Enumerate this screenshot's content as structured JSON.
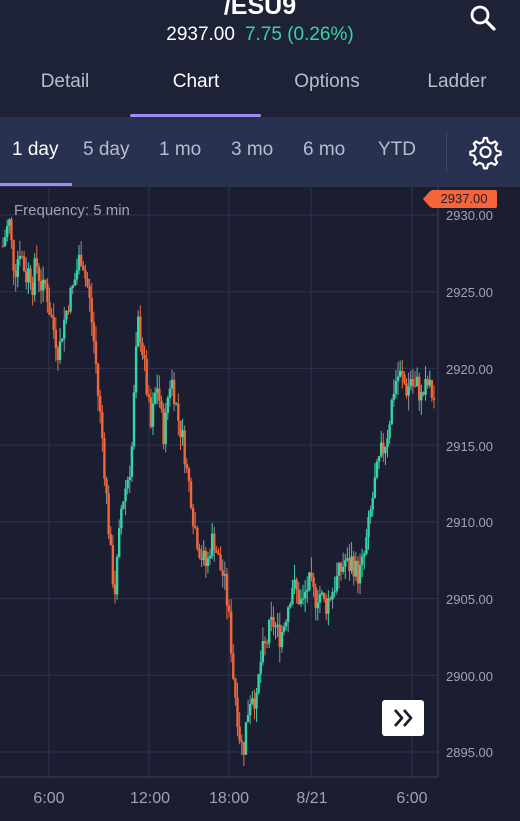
{
  "header": {
    "symbol": "/ESU9",
    "price": "2937.00",
    "change": "7.75 (0.26%)",
    "search_icon": "search-icon"
  },
  "tabs": [
    {
      "label": "Detail",
      "active": false
    },
    {
      "label": "Chart",
      "active": true
    },
    {
      "label": "Options",
      "active": false
    },
    {
      "label": "Ladder",
      "active": false
    }
  ],
  "ranges": [
    {
      "label": "1 day",
      "active": true
    },
    {
      "label": "5 day",
      "active": false
    },
    {
      "label": "1 mo",
      "active": false
    },
    {
      "label": "3 mo",
      "active": false
    },
    {
      "label": "6 mo",
      "active": false
    },
    {
      "label": "YTD",
      "active": false
    }
  ],
  "settings_icon": "gear-icon",
  "colors": {
    "up": "#35d6a6",
    "down": "#f4663a",
    "accent": "#9c8cf5",
    "background": "#1b1e30"
  },
  "chart": {
    "frequency": "Frequency: 5 min",
    "current_price": "2937.00",
    "forward_icon": "fast-forward-icon"
  },
  "chart_data": {
    "type": "candlestick",
    "y_tick_labels": [
      "2930.00",
      "2925.00",
      "2920.00",
      "2915.00",
      "2910.00",
      "2905.00",
      "2900.00",
      "2895.00"
    ],
    "x_tick_labels": [
      "6:00",
      "12:00",
      "18:00",
      "8/21",
      "6:00"
    ],
    "ylim": [
      2894,
      2931
    ],
    "grid": true,
    "path": [
      2928,
      2929,
      2929.5,
      2927,
      2926.5,
      2928,
      2927,
      2926,
      2926.5,
      2925.5,
      2927,
      2926,
      2925,
      2925.5,
      2924,
      2923,
      2922,
      2921,
      2922.5,
      2923.5,
      2924.5,
      2925,
      2926,
      2927,
      2927.5,
      2926,
      2925,
      2923,
      2921,
      2918,
      2916,
      2913,
      2910,
      2907,
      2905.5,
      2908,
      2911,
      2912,
      2913,
      2914,
      2919,
      2923,
      2922,
      2920,
      2918,
      2916,
      2918,
      2919,
      2917,
      2915.5,
      2918,
      2919.5,
      2918.5,
      2917,
      2916,
      2915,
      2913,
      2912,
      2910,
      2909,
      2908,
      2907.5,
      2907,
      2908.5,
      2909,
      2908,
      2907,
      2906.5,
      2905,
      2903,
      2900,
      2898,
      2896,
      2895,
      2897,
      2898.5,
      2899,
      2898,
      2900.5,
      2901.5,
      2902,
      2903,
      2903.5,
      2903,
      2902.5,
      2903,
      2904,
      2905,
      2906,
      2905.5,
      2905,
      2904.5,
      2905.5,
      2906,
      2905.5,
      2905,
      2905.5,
      2905,
      2904.5,
      2905,
      2905.5,
      2906,
      2906.5,
      2907,
      2907.5,
      2907,
      2907.5,
      2907,
      2906.5,
      2907,
      2908,
      2909.5,
      2911,
      2912.5,
      2913.5,
      2914.5,
      2915,
      2916,
      2917.5,
      2919,
      2919.5,
      2919.5,
      2919,
      2918.5,
      2919.5,
      2918.5,
      2919,
      2918,
      2918.5,
      2919,
      2918.5,
      2918
    ]
  }
}
